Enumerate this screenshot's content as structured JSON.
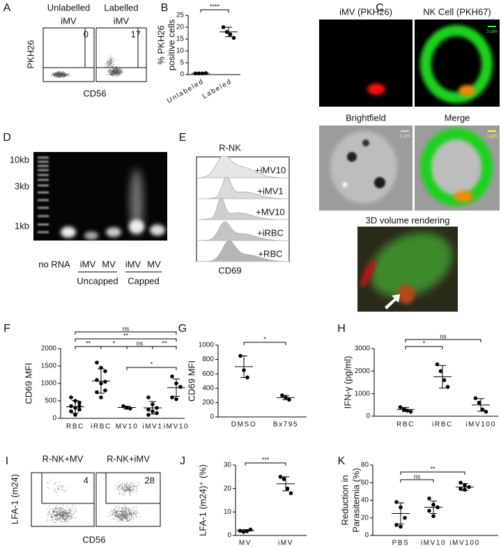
{
  "chart_data": [
    {
      "type": "dot",
      "panel": "B",
      "ylabel": [
        "% PKH26",
        "positive cells"
      ],
      "categories": [
        "Unlabeled",
        "Labeled"
      ],
      "points": [
        [
          0.5,
          0.5,
          0.5,
          0.6
        ],
        [
          20,
          18,
          17,
          15.5
        ]
      ],
      "mean": [
        0.5,
        18
      ],
      "sd": [
        0.1,
        2
      ],
      "ylim": [
        0,
        25
      ],
      "yticks": [
        0,
        5,
        10,
        15,
        20,
        25
      ],
      "brackets": [
        {
          "between": [
            "Unlabeled",
            "Labeled"
          ],
          "label": "****"
        }
      ]
    },
    {
      "type": "dot",
      "panel": "F",
      "ylabel": [
        "CD69 MFI"
      ],
      "categories": [
        "RBC",
        "iRBC",
        "MV10",
        "iMV1",
        "iMV10"
      ],
      "points": [
        [
          600,
          500,
          450,
          350,
          300,
          250,
          200,
          100,
          350
        ],
        [
          1600,
          1450,
          1350,
          1100,
          1000,
          800,
          750,
          600,
          1050
        ],
        [
          350,
          300,
          280
        ],
        [
          600,
          400,
          300,
          250,
          200,
          150,
          100
        ],
        [
          1200,
          1000,
          900,
          600,
          550
        ]
      ],
      "mean": [
        330,
        1070,
        310,
        300,
        880
      ],
      "sd": [
        180,
        350,
        40,
        180,
        250
      ],
      "ylim": [
        0,
        2000
      ],
      "yticks": [
        0,
        500,
        1000,
        1500,
        2000
      ],
      "brackets": [
        {
          "between": [
            "RBC",
            "iRBC"
          ],
          "label": "**"
        },
        {
          "between": [
            "iRBC",
            "MV10"
          ],
          "label": "*"
        },
        {
          "between": [
            "MV10",
            "iMV1"
          ],
          "label": "ns"
        },
        {
          "between": [
            "iMV1",
            "iMV10"
          ],
          "label": "**"
        },
        {
          "between": [
            "MV10",
            "iMV10"
          ],
          "label": "*"
        },
        {
          "between": [
            "RBC",
            "iMV10"
          ],
          "label": "**"
        },
        {
          "between": [
            "RBC",
            "iMV10"
          ],
          "label": "ns"
        }
      ]
    },
    {
      "type": "dot",
      "panel": "G",
      "ylabel": [
        "CD69 MFI"
      ],
      "categories": [
        "DMSO",
        "Bx795"
      ],
      "points": [
        [
          850,
          650,
          550
        ],
        [
          300,
          270,
          240
        ]
      ],
      "mean": [
        700,
        270
      ],
      "sd": [
        150,
        30
      ],
      "ylim": [
        0,
        1000
      ],
      "yticks": [
        0,
        200,
        400,
        600,
        800,
        1000
      ],
      "brackets": [
        {
          "between": [
            "DMSO",
            "Bx795"
          ],
          "label": "*"
        }
      ]
    },
    {
      "type": "dot",
      "panel": "H",
      "ylabel": [
        "IFN-γ (pg/ml)"
      ],
      "categories": [
        "RBC",
        "iRBC",
        "iMV100"
      ],
      "points": [
        [
          400,
          300,
          250,
          200
        ],
        [
          2300,
          2000,
          1600,
          1300
        ],
        [
          800,
          600,
          300,
          200
        ]
      ],
      "mean": [
        300,
        1750,
        500
      ],
      "sd": [
        90,
        500,
        280
      ],
      "ylim": [
        0,
        3000
      ],
      "yticks": [
        0,
        1000,
        2000,
        3000
      ],
      "brackets": [
        {
          "between": [
            "RBC",
            "iRBC"
          ],
          "label": "*"
        },
        {
          "between": [
            "RBC",
            "iMV100"
          ],
          "label": "ns"
        }
      ]
    },
    {
      "type": "dot",
      "panel": "J",
      "ylabel": [
        "LFA-1 (m24)⁺ (%)"
      ],
      "categories": [
        "MV",
        "iMV"
      ],
      "points": [
        [
          2,
          1.5,
          1.8,
          2.5
        ],
        [
          25,
          24,
          20,
          18
        ]
      ],
      "mean": [
        2,
        22
      ],
      "sd": [
        0.5,
        3
      ],
      "ylim": [
        0,
        30
      ],
      "yticks": [
        0,
        10,
        20,
        30
      ],
      "brackets": [
        {
          "between": [
            "MV",
            "iMV"
          ],
          "label": "***"
        }
      ]
    },
    {
      "type": "dot",
      "panel": "K",
      "ylabel": [
        "Reduction in",
        "Parasitemia (%)"
      ],
      "categories": [
        "PBS",
        "iMV10",
        "iMV100"
      ],
      "points": [
        [
          38,
          32,
          20,
          12,
          10
        ],
        [
          42,
          35,
          32,
          28,
          22
        ],
        [
          60,
          57,
          55,
          53,
          52
        ]
      ],
      "mean": [
        25,
        32,
        55
      ],
      "sd": [
        12,
        7,
        4
      ],
      "ylim": [
        0,
        80
      ],
      "yticks": [
        0,
        20,
        40,
        60,
        80
      ],
      "brackets": [
        {
          "between": [
            "PBS",
            "iMV10"
          ],
          "label": "ns"
        },
        {
          "between": [
            "PBS",
            "iMV100"
          ],
          "label": "**"
        }
      ]
    }
  ],
  "flow": [
    {
      "panel": "A",
      "titles": [
        [
          "Unlabelled",
          "iMV"
        ],
        [
          "Labelled",
          "iMV"
        ]
      ],
      "counts": [
        0,
        17
      ],
      "ylabel": "PKH26",
      "xlabel": "CD56"
    },
    {
      "panel": "I",
      "titles": [
        [
          "R-NK+MV"
        ],
        [
          "R-NK+iMV"
        ]
      ],
      "counts": [
        4,
        28
      ],
      "ylabel": "LFA-1 (m24)",
      "xlabel": "CD56"
    }
  ],
  "microscopy": {
    "panel": "C",
    "titles": [
      "iMV (PKH26)",
      "NK Cell (PKH67)",
      "Brightfield",
      "Merge",
      "3D volume  rendering"
    ],
    "scale_label": "1 µm"
  },
  "gel": {
    "panel": "D",
    "markers": [
      "10kb",
      "3kb",
      "1kb"
    ],
    "lanes": [
      "no RNA",
      "iMV",
      "MV",
      "iMV",
      "MV"
    ],
    "groups": [
      "Uncapped",
      "Capped"
    ]
  },
  "histogram": {
    "panel": "E",
    "title": "R-NK",
    "rows": [
      "+iMV10",
      "+iMV1",
      "+MV10",
      "+iRBC",
      "+RBC"
    ],
    "xlabel": "CD69"
  }
}
